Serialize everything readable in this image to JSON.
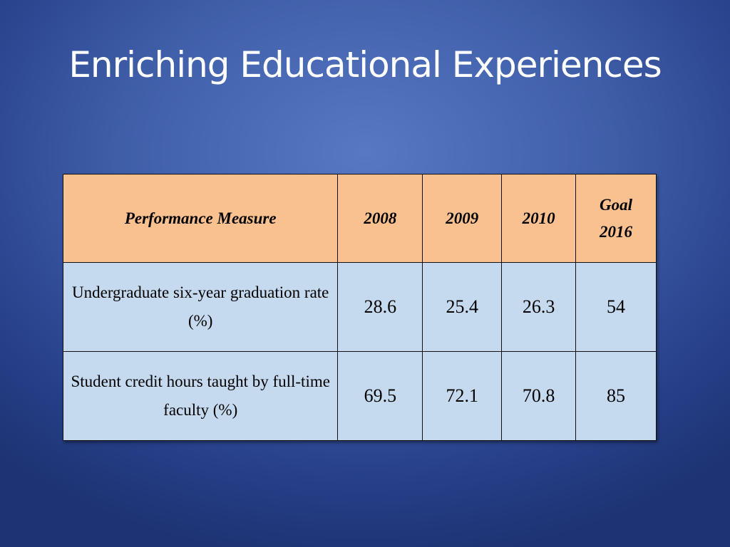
{
  "title": "Enriching Educational Experiences",
  "table": {
    "header": [
      "Performance Measure",
      "2008",
      "2009",
      "2010",
      "Goal 2016"
    ],
    "rows": [
      [
        "Undergraduate six-year graduation rate (%)",
        28.6,
        25.4,
        26.3,
        54
      ],
      [
        "Student credit hours taught by full-time faculty (%)",
        69.5,
        72.1,
        70.8,
        85
      ]
    ]
  }
}
